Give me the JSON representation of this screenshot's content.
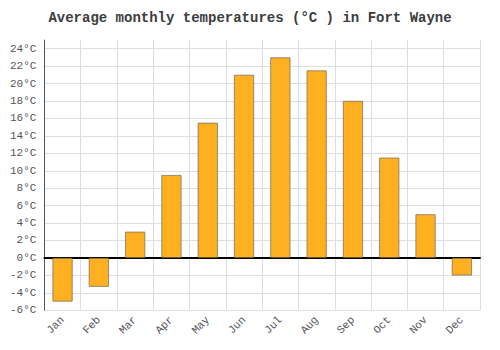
{
  "chart_data": {
    "type": "bar",
    "title": "Average monthly temperatures (°C ) in Fort Wayne",
    "categories": [
      "Jan",
      "Feb",
      "Mar",
      "Apr",
      "May",
      "Jun",
      "Jul",
      "Aug",
      "Sep",
      "Oct",
      "Nov",
      "Dec"
    ],
    "values": [
      -5.0,
      -3.3,
      3.0,
      9.5,
      15.5,
      21.0,
      23.0,
      21.5,
      18.0,
      11.5,
      5.0,
      -2.0
    ],
    "color": "#FFB020",
    "ylim": [
      -6,
      25
    ],
    "yticks": [
      {
        "value": -6,
        "label": "-6°C"
      },
      {
        "value": -4,
        "label": "-4°C"
      },
      {
        "value": -2,
        "label": "-2°C"
      },
      {
        "value": 0,
        "label": "0°C"
      },
      {
        "value": 2,
        "label": "2°C"
      },
      {
        "value": 4,
        "label": "4°C"
      },
      {
        "value": 6,
        "label": "6°C"
      },
      {
        "value": 8,
        "label": "8°C"
      },
      {
        "value": 10,
        "label": "10°C"
      },
      {
        "value": 12,
        "label": "12°C"
      },
      {
        "value": 14,
        "label": "14°C"
      },
      {
        "value": 16,
        "label": "16°C"
      },
      {
        "value": 18,
        "label": "18°C"
      },
      {
        "value": 20,
        "label": "20°C"
      },
      {
        "value": 22,
        "label": "22°C"
      },
      {
        "value": 24,
        "label": "24°C"
      }
    ],
    "grid": true
  }
}
